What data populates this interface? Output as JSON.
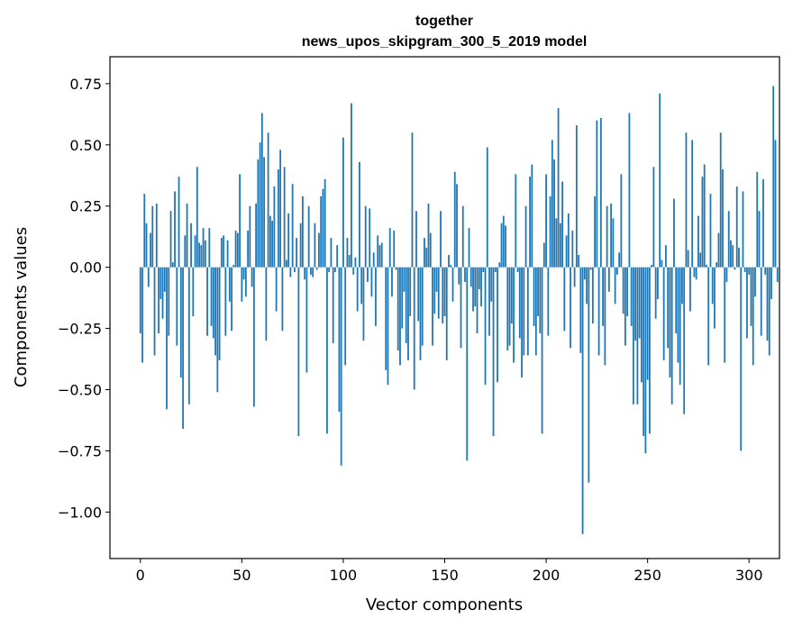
{
  "chart_data": {
    "type": "bar",
    "title_line1": "together",
    "title_line2": "news_upos_skipgram_300_5_2019 model",
    "xlabel": "Vector components",
    "ylabel": "Components values",
    "xlim": [
      -15,
      315
    ],
    "ylim": [
      -1.19,
      0.86
    ],
    "xticks": [
      0,
      50,
      100,
      150,
      200,
      250,
      300
    ],
    "xtick_labels": [
      "0",
      "50",
      "100",
      "150",
      "200",
      "250",
      "300"
    ],
    "yticks": [
      -1.0,
      -0.75,
      -0.5,
      -0.25,
      0.0,
      0.25,
      0.5,
      0.75
    ],
    "ytick_labels": [
      "−1.00",
      "−0.75",
      "−0.50",
      "−0.25",
      "0.00",
      "0.25",
      "0.50",
      "0.75"
    ],
    "bar_color": "#1f77b4",
    "values": [
      -0.27,
      -0.39,
      0.3,
      0.18,
      -0.08,
      0.14,
      0.25,
      -0.36,
      0.26,
      -0.27,
      -0.13,
      -0.21,
      -0.1,
      -0.58,
      -0.28,
      0.23,
      0.02,
      0.31,
      -0.32,
      0.37,
      -0.45,
      -0.66,
      0.13,
      0.26,
      -0.56,
      0.18,
      -0.2,
      0.13,
      0.41,
      0.1,
      0.09,
      0.16,
      0.11,
      -0.28,
      0.16,
      -0.24,
      -0.29,
      -0.36,
      -0.51,
      -0.38,
      0.12,
      0.13,
      -0.28,
      0.11,
      -0.14,
      -0.26,
      0.01,
      0.15,
      0.14,
      0.38,
      -0.14,
      -0.05,
      -0.12,
      0.15,
      0.25,
      -0.08,
      -0.57,
      0.26,
      0.44,
      0.51,
      0.63,
      0.45,
      -0.3,
      0.55,
      0.21,
      0.19,
      0.33,
      -0.18,
      0.4,
      0.48,
      -0.26,
      0.41,
      0.03,
      0.22,
      -0.04,
      0.34,
      -0.02,
      0.12,
      -0.69,
      0.18,
      0.29,
      -0.05,
      -0.43,
      0.25,
      -0.03,
      -0.04,
      0.18,
      -0.01,
      0.14,
      0.29,
      0.32,
      0.36,
      -0.68,
      -0.02,
      0.12,
      -0.31,
      -0.02,
      0.09,
      -0.59,
      -0.81,
      0.53,
      -0.4,
      0.12,
      0.05,
      0.67,
      -0.03,
      0.04,
      -0.18,
      0.43,
      -0.15,
      -0.3,
      0.25,
      -0.06,
      0.24,
      -0.12,
      0.06,
      -0.24,
      0.13,
      0.09,
      0.1,
      0.0,
      -0.42,
      -0.48,
      0.16,
      -0.12,
      0.15,
      -0.01,
      -0.34,
      -0.4,
      -0.25,
      -0.1,
      -0.31,
      -0.38,
      -0.2,
      0.55,
      -0.5,
      0.23,
      -0.22,
      -0.38,
      -0.32,
      0.12,
      0.08,
      0.26,
      0.14,
      -0.32,
      -0.19,
      -0.1,
      -0.21,
      0.23,
      -0.23,
      -0.2,
      -0.38,
      0.05,
      0.01,
      -0.14,
      0.39,
      0.34,
      -0.07,
      -0.33,
      0.25,
      -0.06,
      -0.79,
      0.16,
      -0.08,
      -0.18,
      -0.16,
      -0.27,
      -0.09,
      -0.16,
      -0.02,
      -0.48,
      0.49,
      -0.28,
      -0.14,
      -0.69,
      -0.02,
      -0.47,
      0.02,
      0.18,
      0.21,
      0.17,
      -0.34,
      -0.32,
      -0.23,
      -0.39,
      0.38,
      -0.02,
      -0.29,
      -0.45,
      -0.36,
      0.25,
      -0.36,
      0.37,
      0.42,
      -0.24,
      -0.36,
      -0.2,
      -0.27,
      -0.68,
      0.1,
      0.38,
      -0.28,
      0.29,
      0.52,
      0.44,
      0.2,
      0.65,
      0.18,
      0.35,
      -0.26,
      0.13,
      0.22,
      -0.33,
      0.15,
      -0.08,
      0.58,
      0.05,
      -0.35,
      -1.09,
      -0.05,
      -0.15,
      -0.88,
      -0.01,
      -0.23,
      0.29,
      0.6,
      -0.36,
      0.61,
      -0.24,
      -0.4,
      0.25,
      -0.1,
      0.26,
      0.2,
      -0.15,
      -0.03,
      0.06,
      0.38,
      -0.19,
      -0.32,
      -0.2,
      0.63,
      -0.24,
      -0.56,
      -0.3,
      -0.56,
      -0.29,
      -0.47,
      -0.69,
      -0.76,
      -0.46,
      -0.68,
      0.01,
      0.41,
      -0.21,
      -0.13,
      0.71,
      0.03,
      -0.38,
      0.09,
      -0.33,
      -0.45,
      -0.56,
      0.28,
      -0.27,
      -0.39,
      -0.48,
      -0.15,
      -0.6,
      0.55,
      0.07,
      -0.18,
      0.52,
      -0.04,
      -0.05,
      0.21,
      0.06,
      0.37,
      0.42,
      0.01,
      -0.4,
      0.3,
      -0.15,
      -0.25,
      0.02,
      0.14,
      0.55,
      0.4,
      -0.39,
      -0.06,
      0.23,
      0.11,
      0.09,
      -0.01,
      0.33,
      0.08,
      -0.75,
      0.31,
      -0.02,
      -0.29,
      -0.03,
      -0.24,
      -0.4,
      -0.12,
      0.39,
      0.23,
      -0.28,
      0.36,
      -0.03,
      -0.3,
      -0.36,
      -0.13,
      0.74,
      0.52,
      -0.06
    ]
  }
}
